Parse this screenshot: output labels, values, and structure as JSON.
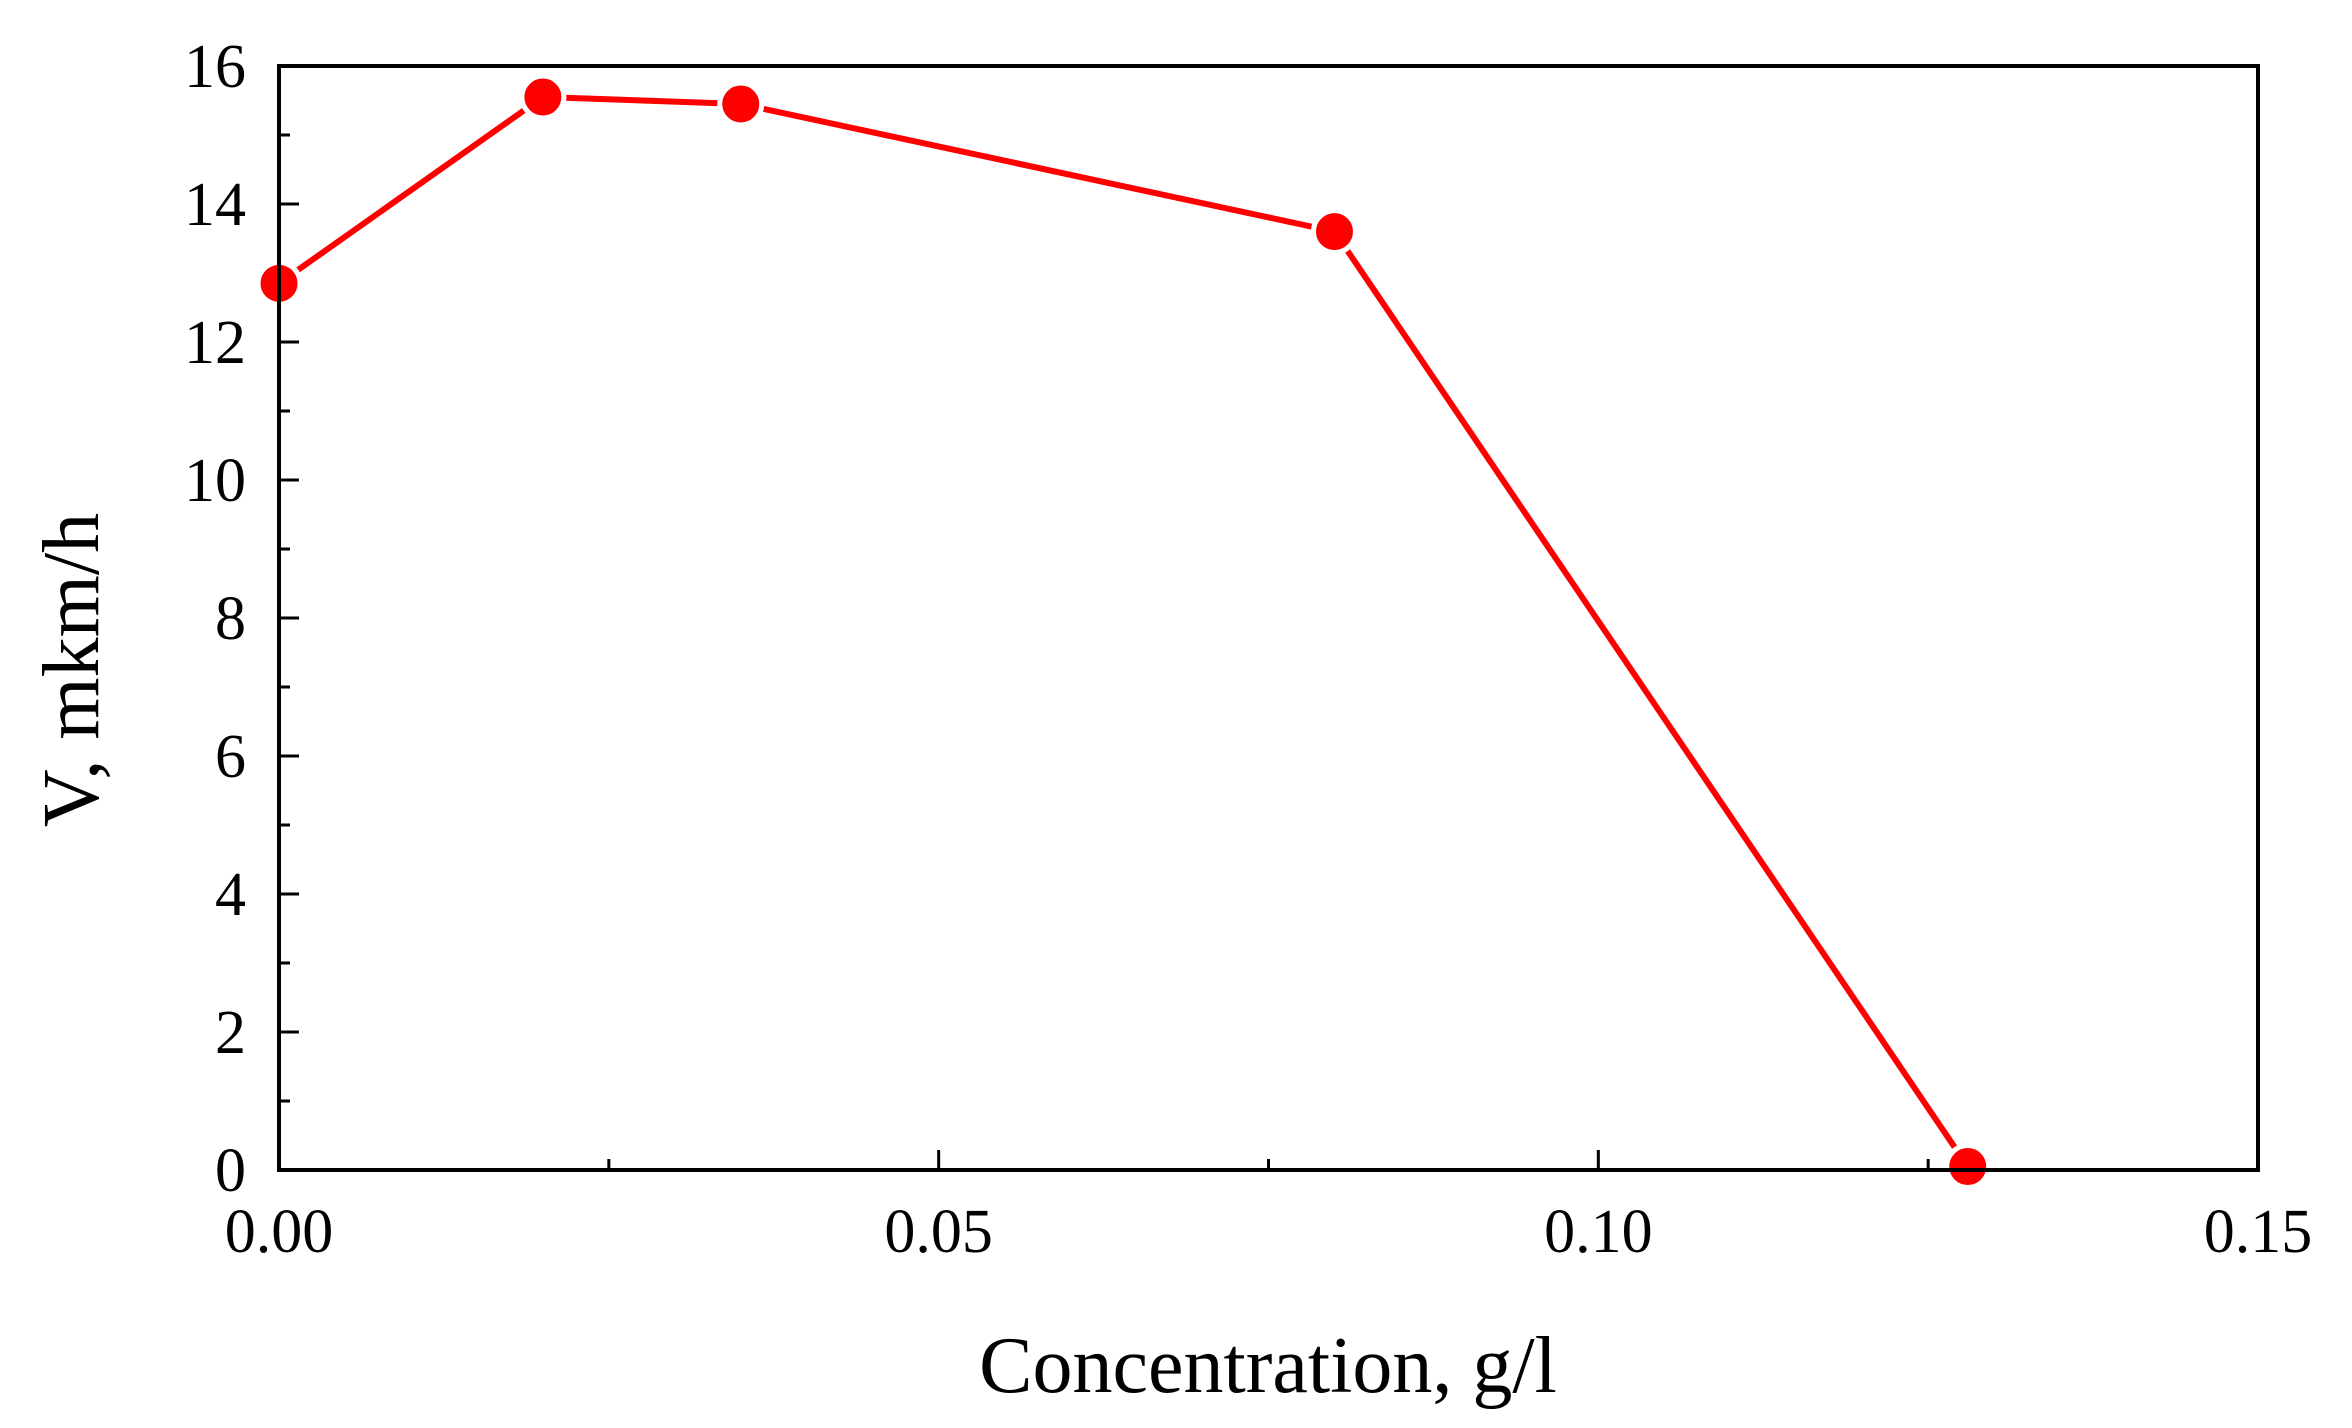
{
  "chart_data": {
    "type": "line",
    "title": "",
    "xlabel": "Concentration, g/l",
    "ylabel": "V, mkm/h",
    "xlim": [
      0,
      0.15
    ],
    "ylim": [
      0,
      16
    ],
    "x_major_ticks": [
      0,
      0.05,
      0.1,
      0.15
    ],
    "x_tick_labels": [
      "0.00",
      "0.05",
      "0.10",
      "0.15"
    ],
    "x_minor_ticks": [
      0.025,
      0.075,
      0.125
    ],
    "y_major_ticks": [
      0,
      2,
      4,
      6,
      8,
      10,
      12,
      14,
      16
    ],
    "y_tick_labels": [
      "0",
      "2",
      "4",
      "6",
      "8",
      "10",
      "12",
      "14",
      "16"
    ],
    "y_minor_ticks": [
      1,
      3,
      5,
      7,
      9,
      11,
      13,
      15
    ],
    "grid": false,
    "legend": "none",
    "series": [
      {
        "name": "V",
        "color": "#ff0000",
        "marker": "circle",
        "x": [
          0.0,
          0.02,
          0.035,
          0.08,
          0.128
        ],
        "y": [
          12.85,
          15.55,
          15.45,
          13.6,
          0.05
        ]
      }
    ]
  }
}
